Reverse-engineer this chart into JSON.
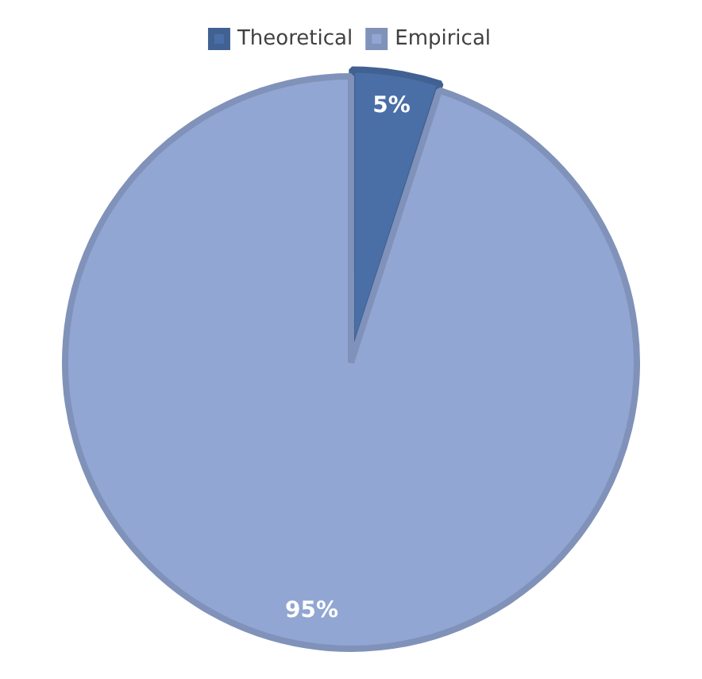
{
  "chart_data": {
    "type": "pie",
    "categories": [
      "Theoretical",
      "Empirical"
    ],
    "values": [
      5,
      95
    ],
    "colors": [
      "#4a6ea6",
      "#91a6d2"
    ],
    "value_labels": [
      "5%",
      "95%"
    ],
    "legend": "top"
  }
}
